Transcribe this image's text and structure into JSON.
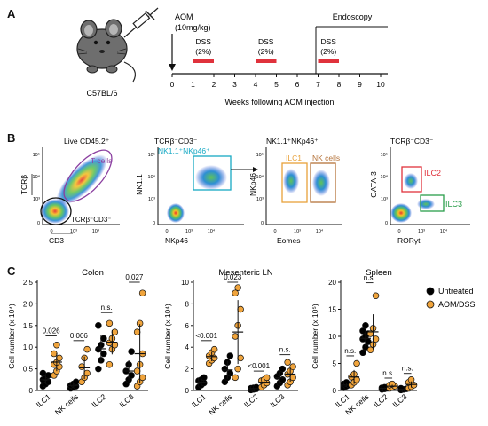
{
  "panel_a": {
    "letter": "A",
    "strain": "C57BL/6",
    "aom_label": "AOM",
    "aom_dose": "(10mg/kg)",
    "endoscopy": "Endoscopy",
    "dss": [
      {
        "name": "DSS",
        "conc": "(2%)",
        "start": 1,
        "end": 2
      },
      {
        "name": "DSS",
        "conc": "(2%)",
        "start": 4,
        "end": 5
      },
      {
        "name": "DSS",
        "conc": "(2%)",
        "start": 7,
        "end": 8
      }
    ],
    "ticks": [
      "0",
      "1",
      "2",
      "3",
      "4",
      "5",
      "6",
      "7",
      "8",
      "9",
      "10"
    ],
    "xlabel": "Weeks following AOM injection"
  },
  "panel_b": {
    "letter": "B",
    "plots": [
      {
        "title": "Live CD45.2⁺",
        "ylabel": "TCRβ",
        "xlabel": "CD3",
        "gates": [
          {
            "label": "T cells",
            "color": "#8b3fa0"
          },
          {
            "label": "TCRβ⁻CD3⁻",
            "color": "#111111"
          }
        ]
      },
      {
        "title": "TCRβ⁻CD3⁻",
        "ylabel": "NK1.1",
        "xlabel": "NKp46",
        "gates": [
          {
            "label": "NK1.1⁺NKp46⁺",
            "color": "#17a9c4"
          }
        ]
      },
      {
        "title": "NK1.1⁺NKp46⁺",
        "ylabel": "NKp46",
        "xlabel": "Eomes",
        "gates": [
          {
            "label": "ILC1",
            "color": "#e8a23a"
          },
          {
            "label": "NK cells",
            "color": "#b5733a"
          }
        ]
      },
      {
        "title": "TCRβ⁻CD3⁻",
        "ylabel": "GATA-3",
        "xlabel": "RORγt",
        "gates": [
          {
            "label": "ILC2",
            "color": "#e0323c"
          },
          {
            "label": "ILC3",
            "color": "#2a9d4a"
          }
        ]
      }
    ],
    "tick_labels": [
      "0",
      "10³",
      "10⁴",
      "10⁵",
      "-10³"
    ]
  },
  "panel_c": {
    "letter": "C",
    "legend": [
      {
        "label": "Untreated",
        "color": "#000000"
      },
      {
        "label": "AOM/DSS",
        "color": "#f0a43c"
      }
    ]
  },
  "chart_data": [
    {
      "type": "scatter",
      "title": "Colon",
      "ylabel": "Cell number (x 10⁴)",
      "ylim": [
        0,
        2.5
      ],
      "yticks": [
        "0",
        "0.5",
        "1.0",
        "1.5",
        "2.0",
        "2.5"
      ],
      "categories": [
        "ILC1",
        "NK cells",
        "ILC2",
        "ILC3"
      ],
      "pvalues": [
        "0.026",
        "0.006",
        "n.s.",
        "0.027"
      ],
      "series": [
        {
          "name": "Untreated",
          "values": [
            [
              0.1,
              0.15,
              0.2,
              0.25,
              0.3,
              0.35,
              0.4
            ],
            [
              0.05,
              0.08,
              0.1,
              0.12,
              0.15,
              0.2
            ],
            [
              0.5,
              0.7,
              0.85,
              0.95,
              1.05,
              1.2,
              1.5
            ],
            [
              0.15,
              0.25,
              0.35,
              0.45,
              0.6,
              0.9
            ]
          ]
        },
        {
          "name": "AOM/DSS",
          "values": [
            [
              0.35,
              0.45,
              0.55,
              0.6,
              0.65,
              0.75,
              0.85,
              1.05
            ],
            [
              0.2,
              0.3,
              0.4,
              0.55,
              0.75,
              0.95
            ],
            [
              0.6,
              0.95,
              1.05,
              1.1,
              1.2,
              1.35,
              1.55
            ],
            [
              0.1,
              0.2,
              0.3,
              0.45,
              0.6,
              0.85,
              1.35,
              1.55,
              2.25
            ]
          ]
        }
      ]
    },
    {
      "type": "scatter",
      "title": "Mesenteric LN",
      "ylabel": "Cell number (x 10⁴)",
      "ylim": [
        0,
        10
      ],
      "yticks": [
        "0",
        "2",
        "4",
        "6",
        "8",
        "10"
      ],
      "categories": [
        "ILC1",
        "NK cells",
        "ILC2",
        "ILC3"
      ],
      "pvalues": [
        "<0.001",
        "0.023",
        "<0.001",
        "n.s."
      ],
      "series": [
        {
          "name": "Untreated",
          "values": [
            [
              0.3,
              0.5,
              0.7,
              0.9,
              1.0,
              1.2
            ],
            [
              0.8,
              1.2,
              1.6,
              2.0,
              2.6,
              3.2
            ],
            [
              0.05,
              0.1,
              0.15,
              0.2,
              0.25,
              0.3
            ],
            [
              0.4,
              0.7,
              1.0,
              1.3,
              1.6,
              2.0
            ]
          ]
        },
        {
          "name": "AOM/DSS",
          "values": [
            [
              2.5,
              2.8,
              3.0,
              3.2,
              3.5,
              3.8
            ],
            [
              1.2,
              2.0,
              3.0,
              5.0,
              6.0,
              7.5,
              9.0,
              9.5
            ],
            [
              0.3,
              0.5,
              0.7,
              0.9,
              1.0,
              1.2
            ],
            [
              0.5,
              0.8,
              1.2,
              1.5,
              1.8,
              2.2,
              2.6
            ]
          ]
        }
      ]
    },
    {
      "type": "scatter",
      "title": "Spleen",
      "ylabel": "Cell number (x 10⁵)",
      "ylim": [
        0,
        20
      ],
      "yticks": [
        "0",
        "5",
        "10",
        "15",
        "20"
      ],
      "categories": [
        "ILC1",
        "NK cells",
        "ILC2",
        "ILC3"
      ],
      "pvalues": [
        "n.s.",
        "n.s.",
        "n.s.",
        "n.s."
      ],
      "series": [
        {
          "name": "Untreated",
          "values": [
            [
              0.5,
              0.8,
              1.0,
              1.2,
              1.5
            ],
            [
              7.0,
              8.0,
              9.0,
              9.5,
              10.0,
              10.5,
              11.0,
              12.0
            ],
            [
              0.2,
              0.3,
              0.4,
              0.5,
              0.6
            ],
            [
              0.1,
              0.2,
              0.3,
              0.4
            ]
          ]
        },
        {
          "name": "AOM/DSS",
          "values": [
            [
              1.0,
              1.5,
              2.0,
              2.5,
              3.0,
              5.0
            ],
            [
              7.5,
              8.5,
              9.5,
              10.5,
              11.5,
              17.5
            ],
            [
              0.4,
              0.6,
              0.8,
              1.0,
              1.2
            ],
            [
              0.4,
              0.7,
              1.0,
              1.5,
              2.0
            ]
          ]
        }
      ]
    }
  ]
}
